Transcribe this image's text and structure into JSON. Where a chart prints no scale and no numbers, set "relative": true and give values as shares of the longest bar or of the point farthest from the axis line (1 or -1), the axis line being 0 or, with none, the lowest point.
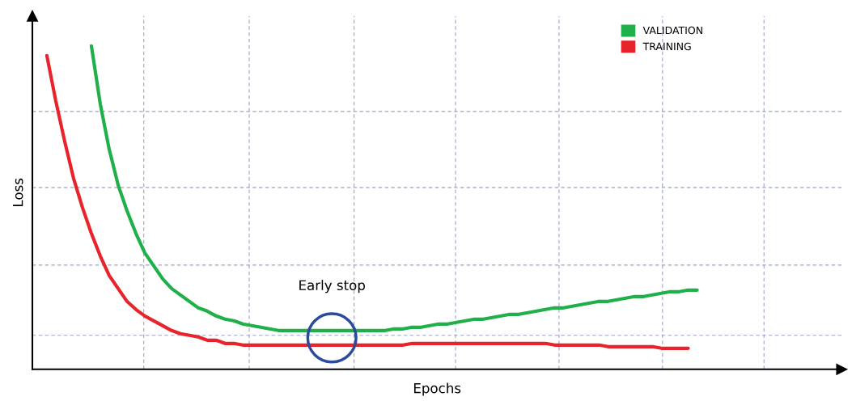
{
  "chart_data": {
    "type": "line",
    "relative": true,
    "xlabel": "Epochs",
    "ylabel": "Loss",
    "legend": "top right",
    "grid": true,
    "line_style": "solid",
    "marker": "none",
    "annotations": [
      "Early stop"
    ],
    "categories": [
      null,
      null,
      null,
      null,
      null,
      null,
      null,
      null,
      null,
      null,
      null,
      null,
      null,
      null,
      null,
      null,
      null,
      null,
      null,
      null,
      null,
      null,
      null,
      null,
      null,
      null,
      null,
      null,
      null,
      null,
      null,
      null,
      null,
      null,
      null,
      null,
      null,
      null,
      null,
      null,
      null,
      null,
      null,
      null,
      null,
      null,
      null,
      null,
      null,
      null,
      null,
      null,
      null,
      null,
      null,
      null,
      null,
      null,
      null,
      null,
      null,
      null,
      null,
      null,
      null,
      null,
      null,
      null,
      null,
      null,
      null,
      null,
      null,
      null
    ],
    "series": [
      {
        "name": "VALIDATION",
        "color": "#1fb04a",
        "values": [
          null,
          null,
          null,
          null,
          null,
          1.0,
          0.82,
          0.68,
          0.57,
          0.49,
          0.42,
          0.36,
          0.32,
          0.28,
          0.25,
          0.23,
          0.21,
          0.19,
          0.18,
          0.165,
          0.155,
          0.15,
          0.14,
          0.135,
          0.13,
          0.125,
          0.12,
          0.12,
          0.12,
          0.12,
          0.12,
          0.12,
          0.12,
          0.12,
          0.12,
          0.12,
          0.12,
          0.12,
          0.12,
          0.125,
          0.125,
          0.13,
          0.13,
          0.135,
          0.14,
          0.14,
          0.145,
          0.15,
          0.155,
          0.155,
          0.16,
          0.165,
          0.17,
          0.17,
          0.175,
          0.18,
          0.185,
          0.19,
          0.19,
          0.195,
          0.2,
          0.205,
          0.21,
          0.21,
          0.215,
          0.22,
          0.225,
          0.225,
          0.23,
          0.235,
          0.24,
          0.24,
          0.245,
          0.245
        ]
      },
      {
        "name": "TRAINING",
        "color": "#e8232b",
        "values": [
          0.97,
          0.83,
          0.705,
          0.59,
          0.5,
          0.42,
          0.35,
          0.29,
          0.25,
          0.21,
          0.185,
          0.165,
          0.15,
          0.135,
          0.12,
          0.11,
          0.105,
          0.1,
          0.09,
          0.09,
          0.08,
          0.08,
          0.075,
          0.075,
          0.075,
          0.075,
          0.075,
          0.075,
          0.075,
          0.075,
          0.075,
          0.075,
          0.075,
          0.075,
          0.075,
          0.075,
          0.075,
          0.075,
          0.075,
          0.075,
          0.075,
          0.08,
          0.08,
          0.08,
          0.08,
          0.08,
          0.08,
          0.08,
          0.08,
          0.08,
          0.08,
          0.08,
          0.08,
          0.08,
          0.08,
          0.08,
          0.08,
          0.075,
          0.075,
          0.075,
          0.075,
          0.075,
          0.075,
          0.07,
          0.07,
          0.07,
          0.07,
          0.07,
          0.07,
          0.065,
          0.065,
          0.065,
          0.065,
          null
        ]
      }
    ]
  }
}
